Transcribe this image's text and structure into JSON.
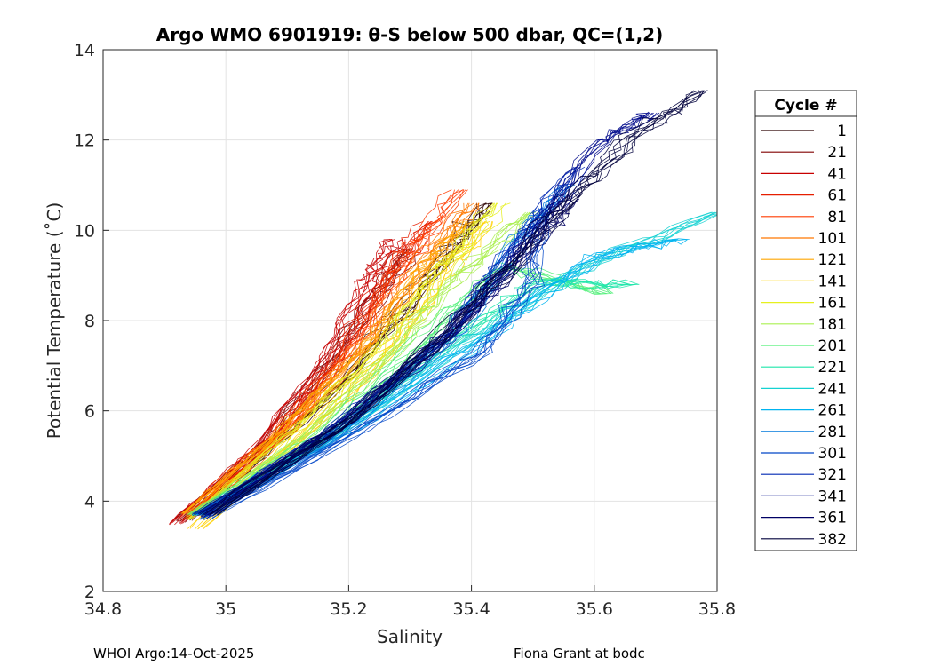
{
  "chart_data": {
    "type": "line",
    "title": "Argo WMO 6901919: θ-S below 500 dbar,  QC=(1,2)",
    "xlabel": "Salinity",
    "ylabel": "Potential Temperature (˚C)",
    "xlim": [
      34.8,
      35.8
    ],
    "ylim": [
      2,
      14
    ],
    "xticks": [
      34.8,
      35,
      35.2,
      35.4,
      35.6,
      35.8
    ],
    "xtick_labels": [
      "34.8",
      "35",
      "35.2",
      "35.4",
      "35.6",
      "35.8"
    ],
    "yticks": [
      2,
      4,
      6,
      8,
      10,
      12,
      14
    ],
    "ytick_labels": [
      "2",
      "4",
      "6",
      "8",
      "10",
      "12",
      "14"
    ],
    "grid": true,
    "legend_position": "right-outside",
    "legend": {
      "title": "Cycle #",
      "entries": [
        "1",
        "21",
        "41",
        "61",
        "81",
        "101",
        "121",
        "141",
        "161",
        "181",
        "201",
        "221",
        "241",
        "261",
        "281",
        "301",
        "321",
        "341",
        "361",
        "382"
      ],
      "colors": [
        "#2a0000",
        "#800000",
        "#c80000",
        "#e61e00",
        "#ff3c00",
        "#ff7800",
        "#ffa500",
        "#ffd200",
        "#e6f01e",
        "#aaf050",
        "#50f078",
        "#1ee6aa",
        "#14d2d2",
        "#00b4f0",
        "#0078dc",
        "#0046c8",
        "#0028b4",
        "#000a8c",
        "#000064",
        "#00003c"
      ]
    },
    "series": [
      {
        "name": "1",
        "color": "#2a0000",
        "points": [
          [
            34.93,
            3.6
          ],
          [
            35.05,
            5.0
          ],
          [
            35.18,
            6.6
          ],
          [
            35.28,
            8.2
          ],
          [
            35.36,
            9.6
          ],
          [
            35.42,
            10.6
          ]
        ]
      },
      {
        "name": "21",
        "color": "#800000",
        "points": [
          [
            34.93,
            3.55
          ],
          [
            35.06,
            5.2
          ],
          [
            35.17,
            7.0
          ],
          [
            35.25,
            8.6
          ],
          [
            35.3,
            9.6
          ]
        ]
      },
      {
        "name": "41",
        "color": "#c80000",
        "points": [
          [
            34.92,
            3.5
          ],
          [
            35.05,
            5.1
          ],
          [
            35.16,
            7.0
          ],
          [
            35.23,
            8.8
          ],
          [
            35.28,
            9.8
          ]
        ]
      },
      {
        "name": "61",
        "color": "#e61e00",
        "points": [
          [
            34.93,
            3.6
          ],
          [
            35.07,
            5.3
          ],
          [
            35.18,
            7.2
          ],
          [
            35.26,
            9.0
          ],
          [
            35.33,
            10.2
          ]
        ]
      },
      {
        "name": "81",
        "color": "#ff3c00",
        "points": [
          [
            34.94,
            3.7
          ],
          [
            35.08,
            5.4
          ],
          [
            35.2,
            7.3
          ],
          [
            35.28,
            9.2
          ],
          [
            35.38,
            10.9
          ]
        ]
      },
      {
        "name": "101",
        "color": "#ff7800",
        "points": [
          [
            34.94,
            3.7
          ],
          [
            35.1,
            5.6
          ],
          [
            35.23,
            7.6
          ],
          [
            35.32,
            9.4
          ],
          [
            35.4,
            10.6
          ]
        ]
      },
      {
        "name": "121",
        "color": "#ffa500",
        "points": [
          [
            34.94,
            3.7
          ],
          [
            35.1,
            5.6
          ],
          [
            35.24,
            7.5
          ],
          [
            35.33,
            9.2
          ],
          [
            35.4,
            10.2
          ]
        ]
      },
      {
        "name": "141",
        "color": "#ffd200",
        "points": [
          [
            34.95,
            3.4
          ],
          [
            35.12,
            5.4
          ],
          [
            35.26,
            7.3
          ],
          [
            35.35,
            9.0
          ],
          [
            35.42,
            10.2
          ]
        ]
      },
      {
        "name": "161",
        "color": "#e6f01e",
        "points": [
          [
            34.95,
            3.6
          ],
          [
            35.13,
            5.7
          ],
          [
            35.27,
            7.6
          ],
          [
            35.36,
            9.2
          ],
          [
            35.45,
            10.6
          ]
        ]
      },
      {
        "name": "181",
        "color": "#aaf050",
        "points": [
          [
            34.95,
            3.7
          ],
          [
            35.14,
            5.5
          ],
          [
            35.28,
            7.4
          ],
          [
            35.38,
            9.0
          ],
          [
            35.5,
            10.4
          ]
        ]
      },
      {
        "name": "201",
        "color": "#50f078",
        "points": [
          [
            34.95,
            3.7
          ],
          [
            35.15,
            5.4
          ],
          [
            35.32,
            7.6
          ],
          [
            35.45,
            9.2
          ],
          [
            35.62,
            8.6
          ]
        ]
      },
      {
        "name": "221",
        "color": "#1ee6aa",
        "points": [
          [
            34.95,
            3.7
          ],
          [
            35.16,
            5.4
          ],
          [
            35.35,
            7.4
          ],
          [
            35.5,
            8.8
          ],
          [
            35.66,
            8.8
          ]
        ]
      },
      {
        "name": "241",
        "color": "#14d2d2",
        "points": [
          [
            34.96,
            3.7
          ],
          [
            35.2,
            5.7
          ],
          [
            35.4,
            7.6
          ],
          [
            35.58,
            9.2
          ],
          [
            35.8,
            10.4
          ]
        ]
      },
      {
        "name": "261",
        "color": "#00b4f0",
        "points": [
          [
            34.96,
            3.7
          ],
          [
            35.2,
            5.6
          ],
          [
            35.42,
            7.6
          ],
          [
            35.6,
            9.4
          ],
          [
            35.74,
            9.8
          ]
        ]
      },
      {
        "name": "281",
        "color": "#0078dc",
        "points": [
          [
            34.96,
            3.7
          ],
          [
            35.19,
            5.5
          ],
          [
            35.38,
            7.8
          ],
          [
            35.48,
            9.8
          ],
          [
            35.56,
            11.0
          ]
        ]
      },
      {
        "name": "301",
        "color": "#0046c8",
        "points": [
          [
            34.97,
            3.6
          ],
          [
            35.2,
            5.4
          ],
          [
            35.42,
            7.3
          ],
          [
            35.5,
            8.8
          ],
          [
            35.52,
            10.5
          ]
        ]
      },
      {
        "name": "321",
        "color": "#0028b4",
        "points": [
          [
            34.96,
            3.7
          ],
          [
            35.18,
            5.6
          ],
          [
            35.36,
            7.6
          ],
          [
            35.46,
            9.4
          ],
          [
            35.58,
            11.4
          ]
        ]
      },
      {
        "name": "341",
        "color": "#000a8c",
        "points": [
          [
            34.97,
            3.65
          ],
          [
            35.18,
            5.6
          ],
          [
            35.38,
            7.8
          ],
          [
            35.5,
            9.8
          ],
          [
            35.62,
            12.0
          ],
          [
            35.7,
            12.6
          ]
        ]
      },
      {
        "name": "361",
        "color": "#000064",
        "points": [
          [
            34.96,
            3.7
          ],
          [
            35.2,
            5.8
          ],
          [
            35.4,
            8.2
          ],
          [
            35.52,
            10.0
          ],
          [
            35.56,
            10.8
          ]
        ]
      },
      {
        "name": "382",
        "color": "#00003c",
        "points": [
          [
            34.97,
            3.7
          ],
          [
            35.2,
            5.8
          ],
          [
            35.4,
            8.4
          ],
          [
            35.55,
            10.6
          ],
          [
            35.65,
            12.0
          ],
          [
            35.77,
            13.1
          ]
        ]
      }
    ]
  },
  "footer": {
    "left": "WHOI Argo:14-Oct-2025",
    "right": "Fiona Grant at bodc"
  }
}
